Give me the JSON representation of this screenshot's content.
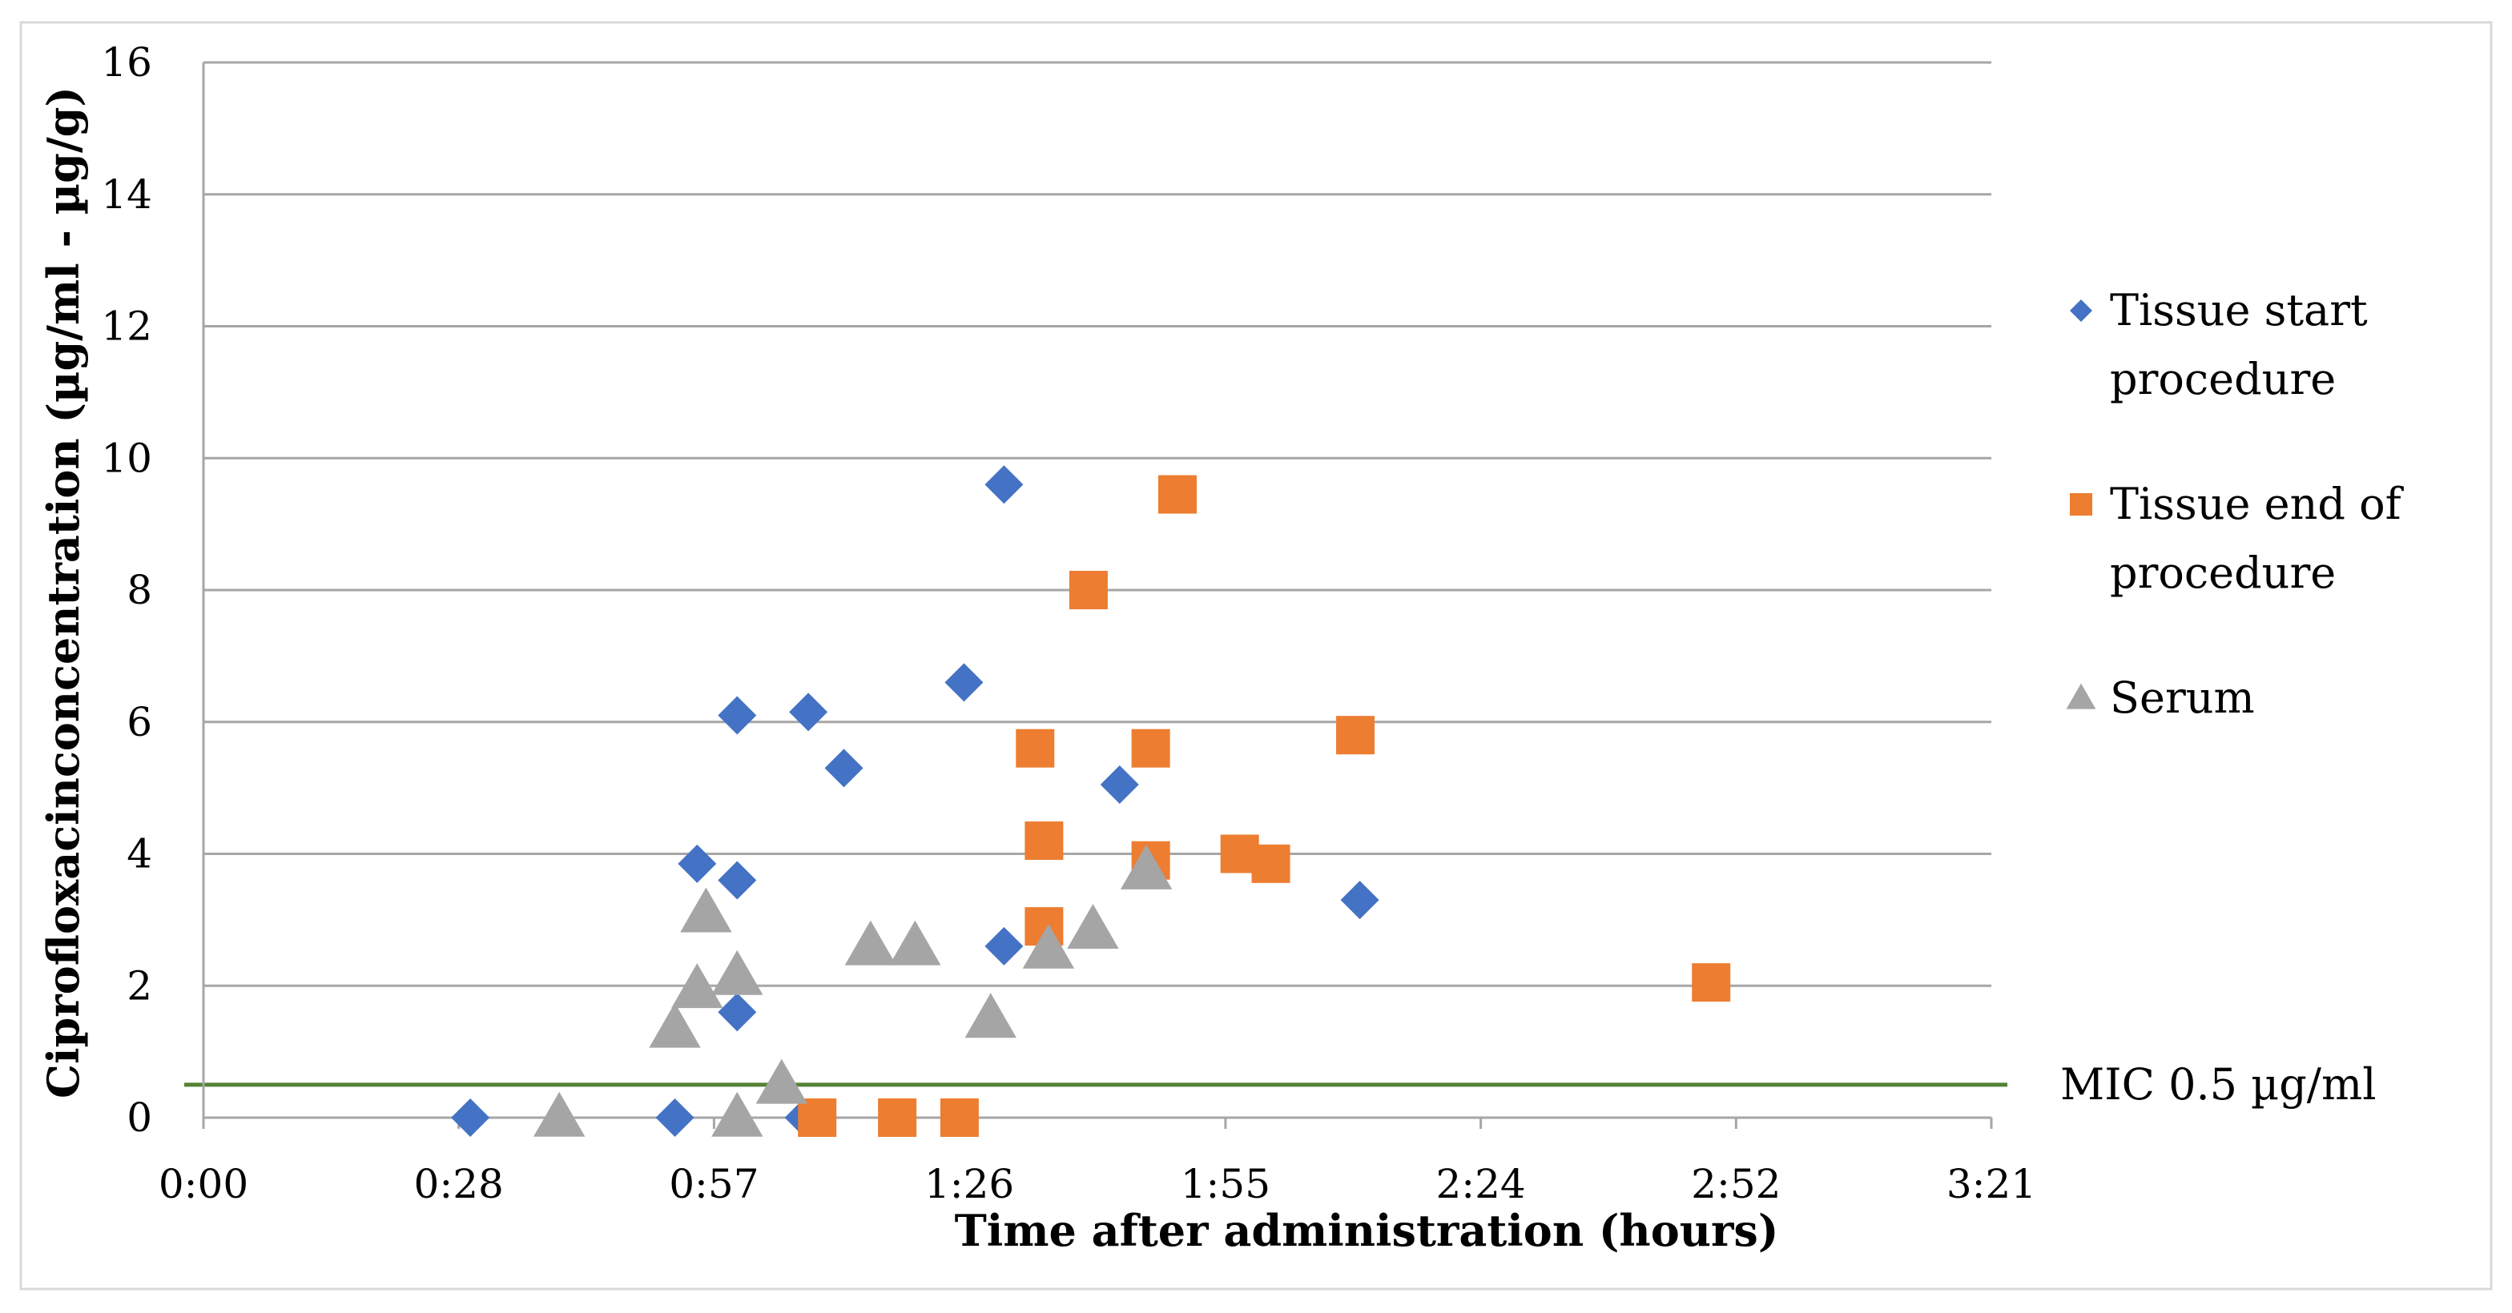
{
  "chart_data": {
    "type": "scatter",
    "title": "",
    "xlabel": "Time after administration (hours)",
    "ylabel": "Ciprofloxacinconcentration  (µg/ml - µg/g)",
    "x_unit": "minutes",
    "xlim": [
      0,
      201
    ],
    "ylim": [
      0,
      16
    ],
    "x_ticks": [
      0,
      28.7,
      57.4,
      86.1,
      114.9,
      143.6,
      172.3,
      201
    ],
    "x_tick_labels": [
      "0:00",
      "0:28",
      "0:57",
      "1:26",
      "1:55",
      "2:24",
      "2:52",
      "3:21"
    ],
    "y_ticks": [
      0,
      2,
      4,
      6,
      8,
      10,
      12,
      14,
      16
    ],
    "y_tick_labels": [
      "0",
      "2",
      "4",
      "6",
      "8",
      "10",
      "12",
      "14",
      "16"
    ],
    "grid": true,
    "legend_position": "right",
    "series": [
      {
        "name": "Tissue start procedure",
        "legend_lines": [
          "Tissue start",
          "procedure"
        ],
        "marker": "diamond",
        "color": "#4472C4",
        "points": [
          {
            "x": 30,
            "y": 0
          },
          {
            "x": 53,
            "y": 0
          },
          {
            "x": 67.5,
            "y": 0
          },
          {
            "x": 55.5,
            "y": 3.85
          },
          {
            "x": 60,
            "y": 3.6
          },
          {
            "x": 60,
            "y": 1.6
          },
          {
            "x": 60,
            "y": 6.1
          },
          {
            "x": 68,
            "y": 6.15
          },
          {
            "x": 72,
            "y": 5.3
          },
          {
            "x": 85.5,
            "y": 6.6
          },
          {
            "x": 90,
            "y": 9.6
          },
          {
            "x": 90,
            "y": 2.6
          },
          {
            "x": 103,
            "y": 5.05
          },
          {
            "x": 130,
            "y": 3.3
          }
        ]
      },
      {
        "name": "Tissue end of procedure",
        "legend_lines": [
          "Tissue end of",
          "procedure"
        ],
        "marker": "square",
        "color": "#ED7D31",
        "points": [
          {
            "x": 69,
            "y": 0
          },
          {
            "x": 78,
            "y": 0
          },
          {
            "x": 85,
            "y": 0
          },
          {
            "x": 93.5,
            "y": 5.6
          },
          {
            "x": 94.5,
            "y": 4.2
          },
          {
            "x": 94.5,
            "y": 2.9
          },
          {
            "x": 99.5,
            "y": 8
          },
          {
            "x": 106.5,
            "y": 5.6
          },
          {
            "x": 106.5,
            "y": 3.9
          },
          {
            "x": 109.5,
            "y": 9.45
          },
          {
            "x": 116.5,
            "y": 4
          },
          {
            "x": 120,
            "y": 3.85
          },
          {
            "x": 129.5,
            "y": 5.8
          },
          {
            "x": 169.5,
            "y": 2.05
          }
        ]
      },
      {
        "name": "Serum",
        "legend_lines": [
          "Serum"
        ],
        "marker": "triangle",
        "color": "#A5A5A5",
        "points": [
          {
            "x": 40,
            "y": 0
          },
          {
            "x": 60,
            "y": 0
          },
          {
            "x": 53,
            "y": 1.35
          },
          {
            "x": 55.5,
            "y": 1.95
          },
          {
            "x": 56.5,
            "y": 3.1
          },
          {
            "x": 60,
            "y": 2.15
          },
          {
            "x": 65,
            "y": 0.5
          },
          {
            "x": 75,
            "y": 2.6
          },
          {
            "x": 80,
            "y": 2.6
          },
          {
            "x": 88.5,
            "y": 1.5
          },
          {
            "x": 95,
            "y": 2.55
          },
          {
            "x": 100,
            "y": 2.85
          },
          {
            "x": 106,
            "y": 3.75
          }
        ]
      }
    ],
    "annotations": [
      {
        "type": "hline",
        "y": 0.5,
        "color": "#548235",
        "label": "MIC  0.5 µg/ml"
      }
    ]
  }
}
